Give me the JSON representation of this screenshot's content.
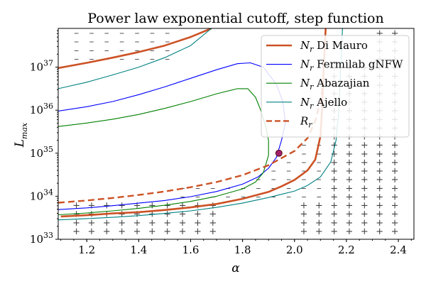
{
  "chart_data": {
    "type": "line",
    "title": "Power law exponential cutoff, step function",
    "xlabel": "α",
    "ylabel": "L",
    "ylabel_sub": "max",
    "xlim": [
      1.09,
      2.46
    ],
    "ylim_log10": [
      33,
      37.9
    ],
    "yscale": "log",
    "grid": false,
    "legend_position": "upper-right",
    "x_ticks": [
      "1.2",
      "1.4",
      "1.6",
      "1.8",
      "2.0",
      "2.2",
      "2.4"
    ],
    "x_tick_values": [
      1.2,
      1.4,
      1.6,
      1.8,
      2.0,
      2.2,
      2.4
    ],
    "y_ticks": [
      {
        "base": "10",
        "exp": "33",
        "log": 33
      },
      {
        "base": "10",
        "exp": "34",
        "log": 34
      },
      {
        "base": "10",
        "exp": "35",
        "log": 35
      },
      {
        "base": "10",
        "exp": "36",
        "log": 36
      },
      {
        "base": "10",
        "exp": "37",
        "log": 37
      }
    ],
    "series": [
      {
        "name": "Di Mauro",
        "label_main": "N",
        "label_sub": "r",
        "label_rest": " Di Mauro",
        "color": "#cc5225",
        "style": "solid",
        "width": 2.6,
        "points": [
          [
            1.1,
            33.53
          ],
          [
            1.2,
            33.56
          ],
          [
            1.3,
            33.6
          ],
          [
            1.4,
            33.63
          ],
          [
            1.5,
            33.68
          ],
          [
            1.6,
            33.74
          ],
          [
            1.7,
            33.82
          ],
          [
            1.8,
            33.94
          ],
          [
            1.9,
            34.1
          ],
          [
            1.95,
            34.23
          ],
          [
            2.0,
            34.38
          ],
          [
            2.05,
            34.6
          ],
          [
            2.08,
            34.85
          ],
          [
            2.1,
            35.4
          ],
          [
            2.105,
            35.9
          ],
          [
            2.11,
            36.6
          ],
          [
            2.115,
            37.3
          ],
          [
            2.12,
            37.9
          ]
        ]
      },
      {
        "name": "Di Mauro upper",
        "label_main": "",
        "label_sub": "",
        "label_rest": "",
        "color": "#cc5225",
        "style": "solid",
        "width": 2.6,
        "points": [
          [
            1.09,
            36.98
          ],
          [
            1.2,
            37.1
          ],
          [
            1.3,
            37.22
          ],
          [
            1.4,
            37.35
          ],
          [
            1.5,
            37.5
          ],
          [
            1.6,
            37.7
          ],
          [
            1.68,
            37.9
          ]
        ]
      },
      {
        "name": "Fermilab gNFW",
        "label_main": "N",
        "label_sub": "r",
        "label_rest": " Fermilab gNFW",
        "color": "#0000ff",
        "style": "solid",
        "width": 1.1,
        "points": [
          [
            1.09,
            33.69
          ],
          [
            1.2,
            33.73
          ],
          [
            1.3,
            33.78
          ],
          [
            1.4,
            33.84
          ],
          [
            1.5,
            33.9
          ],
          [
            1.6,
            33.99
          ],
          [
            1.7,
            34.11
          ],
          [
            1.8,
            34.28
          ],
          [
            1.86,
            34.45
          ],
          [
            1.9,
            34.65
          ],
          [
            1.93,
            34.9
          ],
          [
            1.95,
            35.3
          ],
          [
            1.965,
            35.7
          ],
          [
            1.955,
            36.2
          ],
          [
            1.93,
            36.6
          ],
          [
            1.88,
            37.0
          ],
          [
            1.83,
            37.1
          ],
          [
            1.78,
            37.08
          ],
          [
            1.7,
            36.94
          ],
          [
            1.6,
            36.74
          ],
          [
            1.5,
            36.54
          ],
          [
            1.4,
            36.36
          ],
          [
            1.3,
            36.2
          ],
          [
            1.2,
            36.08
          ],
          [
            1.09,
            35.98
          ]
        ]
      },
      {
        "name": "Abazajian",
        "label_main": "N",
        "label_sub": "r",
        "label_rest": " Abazajian",
        "color": "#008000",
        "style": "solid",
        "width": 1.1,
        "points": [
          [
            1.09,
            33.57
          ],
          [
            1.2,
            33.61
          ],
          [
            1.3,
            33.66
          ],
          [
            1.4,
            33.72
          ],
          [
            1.5,
            33.79
          ],
          [
            1.6,
            33.88
          ],
          [
            1.7,
            34.0
          ],
          [
            1.8,
            34.17
          ],
          [
            1.85,
            34.33
          ],
          [
            1.88,
            34.55
          ],
          [
            1.9,
            34.95
          ],
          [
            1.9,
            35.3
          ],
          [
            1.89,
            35.6
          ],
          [
            1.87,
            36.0
          ],
          [
            1.85,
            36.3
          ],
          [
            1.82,
            36.5
          ],
          [
            1.78,
            36.5
          ],
          [
            1.7,
            36.38
          ],
          [
            1.6,
            36.2
          ],
          [
            1.5,
            36.04
          ],
          [
            1.4,
            35.9
          ],
          [
            1.3,
            35.79
          ],
          [
            1.2,
            35.7
          ],
          [
            1.09,
            35.62
          ]
        ]
      },
      {
        "name": "Ajello",
        "label_main": "N",
        "label_sub": "r",
        "label_rest": " Ajello",
        "color": "#008080",
        "style": "solid",
        "width": 1.1,
        "points": [
          [
            1.09,
            33.45
          ],
          [
            1.2,
            33.48
          ],
          [
            1.3,
            33.51
          ],
          [
            1.4,
            33.55
          ],
          [
            1.5,
            33.6
          ],
          [
            1.6,
            33.66
          ],
          [
            1.7,
            33.74
          ],
          [
            1.8,
            33.84
          ],
          [
            1.9,
            33.97
          ],
          [
            2.0,
            34.12
          ],
          [
            2.05,
            34.25
          ],
          [
            2.1,
            34.45
          ],
          [
            2.14,
            34.8
          ],
          [
            2.16,
            35.3
          ],
          [
            2.17,
            35.9
          ],
          [
            2.175,
            36.6
          ],
          [
            2.18,
            37.3
          ],
          [
            2.185,
            37.9
          ]
        ]
      },
      {
        "name": "Ajello upper",
        "label_main": "",
        "label_sub": "",
        "label_rest": "",
        "color": "#008080",
        "style": "solid",
        "width": 1.1,
        "points": [
          [
            1.09,
            36.5
          ],
          [
            1.2,
            36.65
          ],
          [
            1.3,
            36.82
          ],
          [
            1.4,
            37.0
          ],
          [
            1.5,
            37.22
          ],
          [
            1.6,
            37.5
          ],
          [
            1.68,
            37.9
          ]
        ]
      },
      {
        "name": "R",
        "label_main": "R",
        "label_sub": "r",
        "label_rest": "",
        "color": "#cc5225",
        "style": "dashed",
        "width": 2.4,
        "points": [
          [
            1.09,
            33.85
          ],
          [
            1.2,
            33.9
          ],
          [
            1.3,
            33.96
          ],
          [
            1.4,
            34.03
          ],
          [
            1.5,
            34.11
          ],
          [
            1.6,
            34.21
          ],
          [
            1.7,
            34.33
          ],
          [
            1.8,
            34.49
          ],
          [
            1.9,
            34.72
          ],
          [
            2.0,
            35.05
          ],
          [
            2.05,
            35.35
          ],
          [
            2.08,
            35.75
          ],
          [
            2.1,
            36.2
          ],
          [
            2.11,
            36.6
          ]
        ]
      }
    ],
    "marker": {
      "x": 1.94,
      "y_log10": 35.0,
      "color": "#a0206a"
    },
    "scatter_symbols": {
      "plus": "+",
      "dash": "–"
    }
  }
}
